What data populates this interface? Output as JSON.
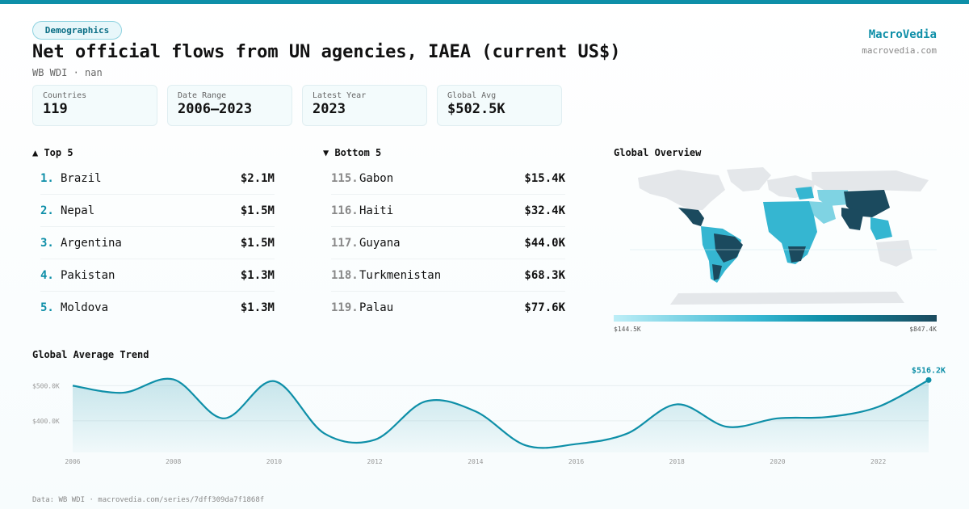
{
  "category": "Demographics",
  "title": "Net official flows from UN agencies, IAEA (current US$)",
  "subtitle": "WB WDI · nan",
  "brand": {
    "name": "MacroVedia",
    "url": "macrovedia.com"
  },
  "stats": [
    {
      "label": "Countries",
      "value": "119"
    },
    {
      "label": "Date Range",
      "value": "2006–2023"
    },
    {
      "label": "Latest Year",
      "value": "2023"
    },
    {
      "label": "Global Avg",
      "value": "$502.5K"
    }
  ],
  "top5": {
    "heading": "▲ Top 5",
    "items": [
      {
        "rank": "1.",
        "name": "Brazil",
        "value": "$2.1M"
      },
      {
        "rank": "2.",
        "name": "Nepal",
        "value": "$1.5M"
      },
      {
        "rank": "3.",
        "name": "Argentina",
        "value": "$1.5M"
      },
      {
        "rank": "4.",
        "name": "Pakistan",
        "value": "$1.3M"
      },
      {
        "rank": "5.",
        "name": "Moldova",
        "value": "$1.3M"
      }
    ]
  },
  "bottom5": {
    "heading": "▼ Bottom 5",
    "items": [
      {
        "rank": "115.",
        "name": "Gabon",
        "value": "$15.4K"
      },
      {
        "rank": "116.",
        "name": "Haiti",
        "value": "$32.4K"
      },
      {
        "rank": "117.",
        "name": "Guyana",
        "value": "$44.0K"
      },
      {
        "rank": "118.",
        "name": "Turkmenistan",
        "value": "$68.3K"
      },
      {
        "rank": "119.",
        "name": "Palau",
        "value": "$77.6K"
      }
    ]
  },
  "map": {
    "heading": "Global Overview",
    "legend_min": "$144.5K",
    "legend_max": "$847.4K",
    "colors": {
      "low": "#bdeef7",
      "mid": "#35b6d1",
      "high": "#1b4a5e",
      "nodata": "#e4e7ea"
    }
  },
  "trend_heading": "Global Average Trend",
  "chart_data": {
    "type": "area",
    "x": [
      2006,
      2007,
      2008,
      2009,
      2010,
      2011,
      2012,
      2013,
      2014,
      2015,
      2016,
      2017,
      2018,
      2019,
      2020,
      2021,
      2022,
      2023
    ],
    "values": [
      500,
      480,
      518,
      407,
      513,
      364,
      346,
      455,
      427,
      330,
      334,
      363,
      447,
      383,
      407,
      411,
      440,
      516.2
    ],
    "ylim": [
      310,
      540
    ],
    "y_ticks": [
      400,
      500
    ],
    "y_tick_labels": [
      "$400.0K",
      "$500.0K"
    ],
    "x_ticks": [
      2006,
      2008,
      2010,
      2012,
      2014,
      2016,
      2018,
      2020,
      2022
    ],
    "last_label": "$516.2K",
    "color": "#0e8fa8"
  },
  "footer": "Data: WB WDI · macrovedia.com/series/7dff309da7f1868f"
}
